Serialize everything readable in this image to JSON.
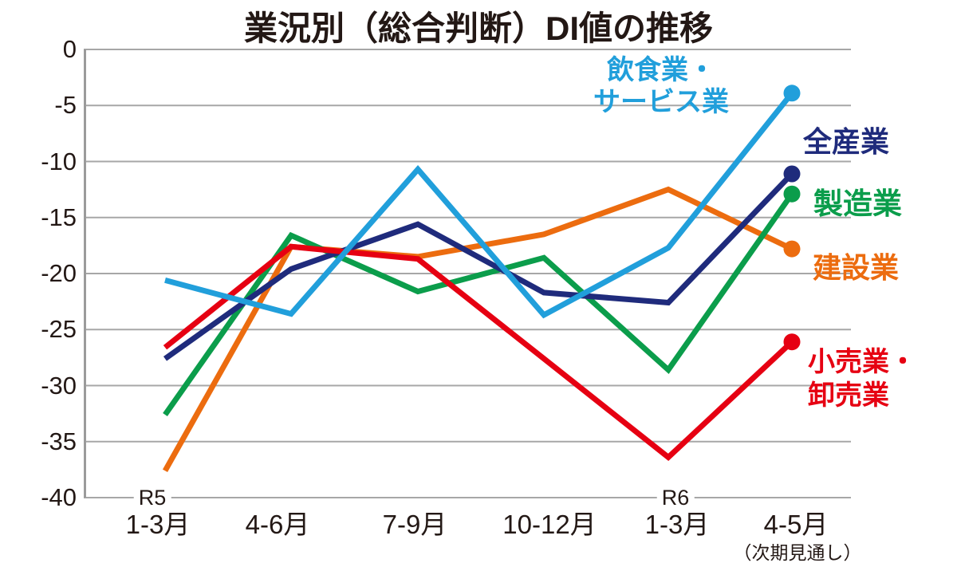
{
  "page": {
    "background": "#ffffff"
  },
  "chart_data": {
    "type": "line",
    "title": "業況別（総合判断）DI値の推移",
    "title_color": "#231815",
    "x_categories": [
      "1-3月",
      "4-6月",
      "7-9月",
      "10-12月",
      "1-3月",
      "4-5月"
    ],
    "x_note": {
      "text": "（次期見通し）",
      "under_category_index": 5
    },
    "era_annotations": [
      {
        "label": "R5",
        "category_index": 0
      },
      {
        "label": "R6",
        "category_index": 4
      }
    ],
    "ylim": [
      -40,
      0
    ],
    "y_ticks": [
      0,
      -5,
      -10,
      -15,
      -20,
      -25,
      -30,
      -35,
      -40
    ],
    "grid": true,
    "legend_position": "right-inline",
    "grid_color": "#a7a7a7",
    "axis_color": "#9b9b9b",
    "text_color": "#231815",
    "series": [
      {
        "key": "food-service",
        "name": "飲食業・サービス業",
        "legend_lines": [
          "飲食業・",
          "サービス業"
        ],
        "color": "#219fdb",
        "values": [
          -20.6,
          -23.6,
          -10.7,
          -23.7,
          -17.7,
          -3.9
        ]
      },
      {
        "key": "all-industries",
        "name": "全産業",
        "legend_lines": [
          "全産業"
        ],
        "color": "#1f2b7c",
        "values": [
          -27.6,
          -19.6,
          -15.6,
          -21.7,
          -22.6,
          -11.1
        ]
      },
      {
        "key": "manufacturing",
        "name": "製造業",
        "legend_lines": [
          "製造業"
        ],
        "color": "#0b9d4b",
        "values": [
          -32.6,
          -16.6,
          -21.6,
          -18.6,
          -28.6,
          -12.9
        ]
      },
      {
        "key": "construction",
        "name": "建設業",
        "legend_lines": [
          "建設業"
        ],
        "color": "#ec6c0f",
        "values": [
          -37.6,
          -17.6,
          -18.5,
          -16.5,
          -12.5,
          -17.8
        ]
      },
      {
        "key": "retail-wholesale",
        "name": "小売業・卸売業",
        "legend_lines": [
          "小売業・",
          "卸売業"
        ],
        "color": "#e60012",
        "values": [
          -26.6,
          -17.6,
          -18.7,
          -27.6,
          -36.4,
          -26.1
        ]
      }
    ]
  }
}
